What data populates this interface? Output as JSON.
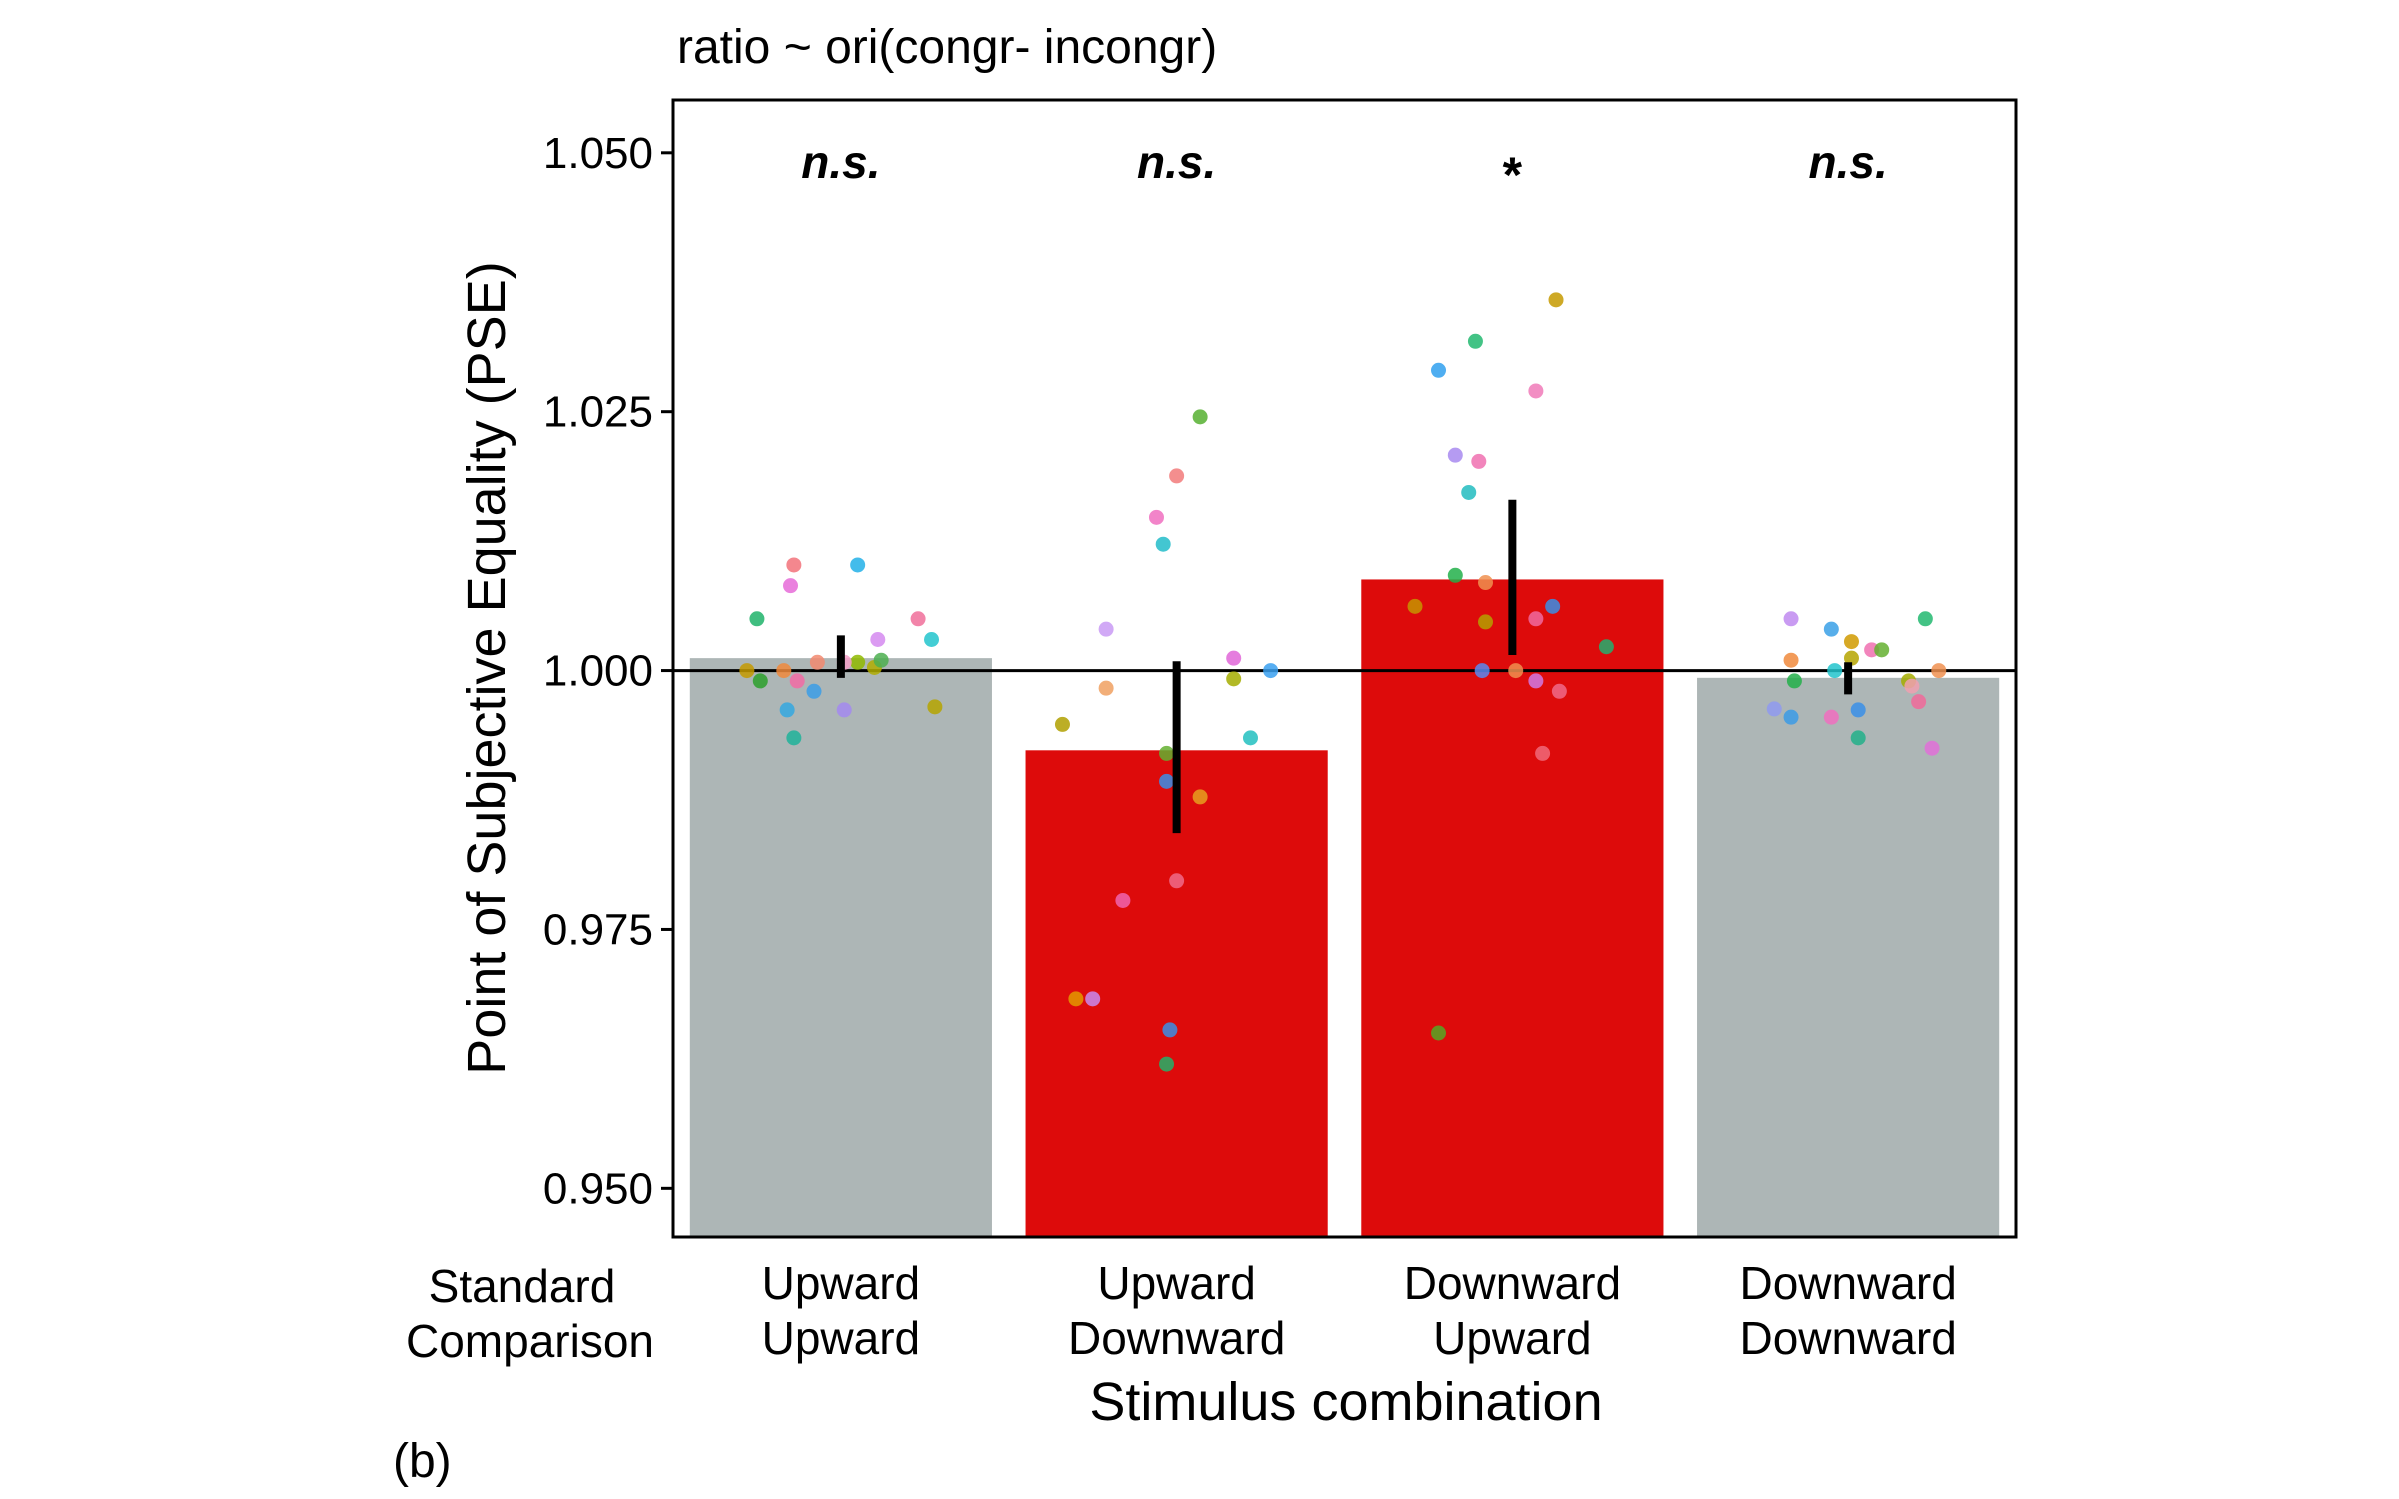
{
  "chart_data": {
    "type": "bar",
    "title": "ratio ~ ori(congr- incongr)",
    "xlabel": "Stimulus combination",
    "ylabel": "Point of Subjective Equality (PSE)",
    "panel_label": "(b)",
    "row_headers": [
      "Standard",
      "Comparison"
    ],
    "categories": [
      {
        "standard": "Upward",
        "comparison": "Upward"
      },
      {
        "standard": "Upward",
        "comparison": "Downward"
      },
      {
        "standard": "Downward",
        "comparison": "Upward"
      },
      {
        "standard": "Downward",
        "comparison": "Downward"
      }
    ],
    "values": [
      1.0012,
      0.9923,
      1.0088,
      0.9993
    ],
    "error_bars": [
      [
        0.9993,
        1.0034
      ],
      [
        0.9843,
        1.0009
      ],
      [
        1.0015,
        1.0165
      ],
      [
        0.9977,
        1.0008
      ]
    ],
    "bar_colors": [
      "#adb6b6",
      "#dd0b0b",
      "#dd0b0b",
      "#adb6b6"
    ],
    "significance": [
      "n.s.",
      "n.s.",
      "*",
      "n.s."
    ],
    "reference_line": 1.0,
    "ylim": [
      0.9453,
      1.0551
    ],
    "yticks": [
      "0.950",
      "0.975",
      "1.000",
      "1.025",
      "1.050"
    ],
    "grid": false,
    "points": [
      [
        [
          -0.28,
          1.0,
          "#c49a00"
        ],
        [
          -0.25,
          1.005,
          "#1fb36a"
        ],
        [
          -0.24,
          0.999,
          "#2ca02c"
        ],
        [
          -0.17,
          1.0,
          "#f08a3c"
        ],
        [
          -0.16,
          0.9962,
          "#34a8e0"
        ],
        [
          -0.14,
          0.9935,
          "#1fb39a"
        ],
        [
          -0.15,
          1.0082,
          "#e66bd8"
        ],
        [
          -0.14,
          1.0102,
          "#f2727a"
        ],
        [
          -0.13,
          0.999,
          "#f26ba5"
        ],
        [
          -0.08,
          0.998,
          "#3b9ee6"
        ],
        [
          -0.07,
          1.0008,
          "#f28a70"
        ],
        [
          0.01,
          0.9962,
          "#a38af0"
        ],
        [
          0.05,
          1.0008,
          "#8fba00"
        ],
        [
          0.1,
          1.0003,
          "#b0ad00"
        ],
        [
          0.05,
          1.0102,
          "#22b0e8"
        ],
        [
          0.12,
          1.001,
          "#4caf50"
        ],
        [
          0.11,
          1.003,
          "#d58af0"
        ],
        [
          0.23,
          1.005,
          "#f06e9a"
        ],
        [
          0.27,
          1.003,
          "#22c4cc"
        ],
        [
          0.28,
          0.9965,
          "#b5a400"
        ],
        [
          0.01,
          1.0008,
          "#f5a0c8"
        ]
      ],
      [
        [
          -0.34,
          0.9948,
          "#b0a000"
        ],
        [
          -0.3,
          0.9683,
          "#e39a00"
        ],
        [
          -0.25,
          0.9683,
          "#c98af0"
        ],
        [
          -0.21,
          1.004,
          "#c99af5"
        ],
        [
          -0.21,
          0.9983,
          "#f0a060"
        ],
        [
          -0.16,
          0.9778,
          "#f065b0"
        ],
        [
          -0.06,
          1.0148,
          "#f06ec0"
        ],
        [
          -0.04,
          1.0122,
          "#22bcc9"
        ],
        [
          -0.03,
          0.962,
          "#22b36a"
        ],
        [
          -0.03,
          0.992,
          "#64b030"
        ],
        [
          -0.03,
          0.9893,
          "#3a8fe8"
        ],
        [
          -0.02,
          0.9653,
          "#3b8fe6"
        ],
        [
          0.0,
          0.9797,
          "#f06b8a"
        ],
        [
          0.0,
          1.0188,
          "#f27a7a"
        ],
        [
          0.07,
          0.9878,
          "#e6a020"
        ],
        [
          0.07,
          1.0245,
          "#56b030"
        ],
        [
          0.17,
          1.0012,
          "#e066d8"
        ],
        [
          0.17,
          0.9992,
          "#a5ad00"
        ],
        [
          0.22,
          0.9935,
          "#22c0c0"
        ],
        [
          0.28,
          1.0,
          "#3aa0f0"
        ]
      ],
      [
        [
          -0.29,
          1.0062,
          "#c59500"
        ],
        [
          -0.22,
          0.965,
          "#55a825"
        ],
        [
          -0.22,
          1.029,
          "#30a0ee"
        ],
        [
          -0.17,
          1.0092,
          "#22b04a"
        ],
        [
          -0.17,
          1.0208,
          "#a88af0"
        ],
        [
          -0.13,
          1.0172,
          "#22bcc0"
        ],
        [
          -0.11,
          1.0318,
          "#22b870"
        ],
        [
          -0.1,
          1.0202,
          "#f070b0"
        ],
        [
          -0.09,
          1.0,
          "#5b8af0"
        ],
        [
          -0.08,
          1.0085,
          "#f09050"
        ],
        [
          -0.08,
          1.0047,
          "#b5a000"
        ],
        [
          0.01,
          1.0,
          "#f09050"
        ],
        [
          0.07,
          1.005,
          "#f06aa0"
        ],
        [
          0.07,
          0.999,
          "#d07ae6"
        ],
        [
          0.07,
          1.027,
          "#f07ab8"
        ],
        [
          0.09,
          0.992,
          "#f06a7a"
        ],
        [
          0.12,
          1.0062,
          "#3a8fe6"
        ],
        [
          0.14,
          0.998,
          "#f06a8a"
        ],
        [
          0.13,
          1.0358,
          "#c59a00"
        ],
        [
          0.28,
          1.0023,
          "#22b070"
        ]
      ],
      [
        [
          -0.22,
          0.9963,
          "#8f9af0"
        ],
        [
          -0.17,
          0.9955,
          "#3b9be6"
        ],
        [
          -0.17,
          1.005,
          "#c08af0"
        ],
        [
          -0.17,
          1.001,
          "#f08a3c"
        ],
        [
          -0.16,
          0.999,
          "#22b04a"
        ],
        [
          -0.05,
          0.9955,
          "#f06ec0"
        ],
        [
          -0.05,
          1.004,
          "#3aa0e6"
        ],
        [
          -0.04,
          1.0,
          "#22c4cc"
        ],
        [
          0.01,
          1.0028,
          "#d09a00"
        ],
        [
          0.01,
          1.0012,
          "#b5a400"
        ],
        [
          0.03,
          0.9962,
          "#3a8fe8"
        ],
        [
          0.03,
          0.9935,
          "#22b08a"
        ],
        [
          0.07,
          1.002,
          "#f070b0"
        ],
        [
          0.1,
          1.002,
          "#64b030"
        ],
        [
          0.18,
          0.999,
          "#a5ad00"
        ],
        [
          0.19,
          0.9985,
          "#f0a0b0"
        ],
        [
          0.21,
          0.997,
          "#f06a9a"
        ],
        [
          0.23,
          1.005,
          "#22b870"
        ],
        [
          0.25,
          0.9925,
          "#e070d8"
        ],
        [
          0.27,
          1.0,
          "#f09050"
        ]
      ]
    ]
  }
}
